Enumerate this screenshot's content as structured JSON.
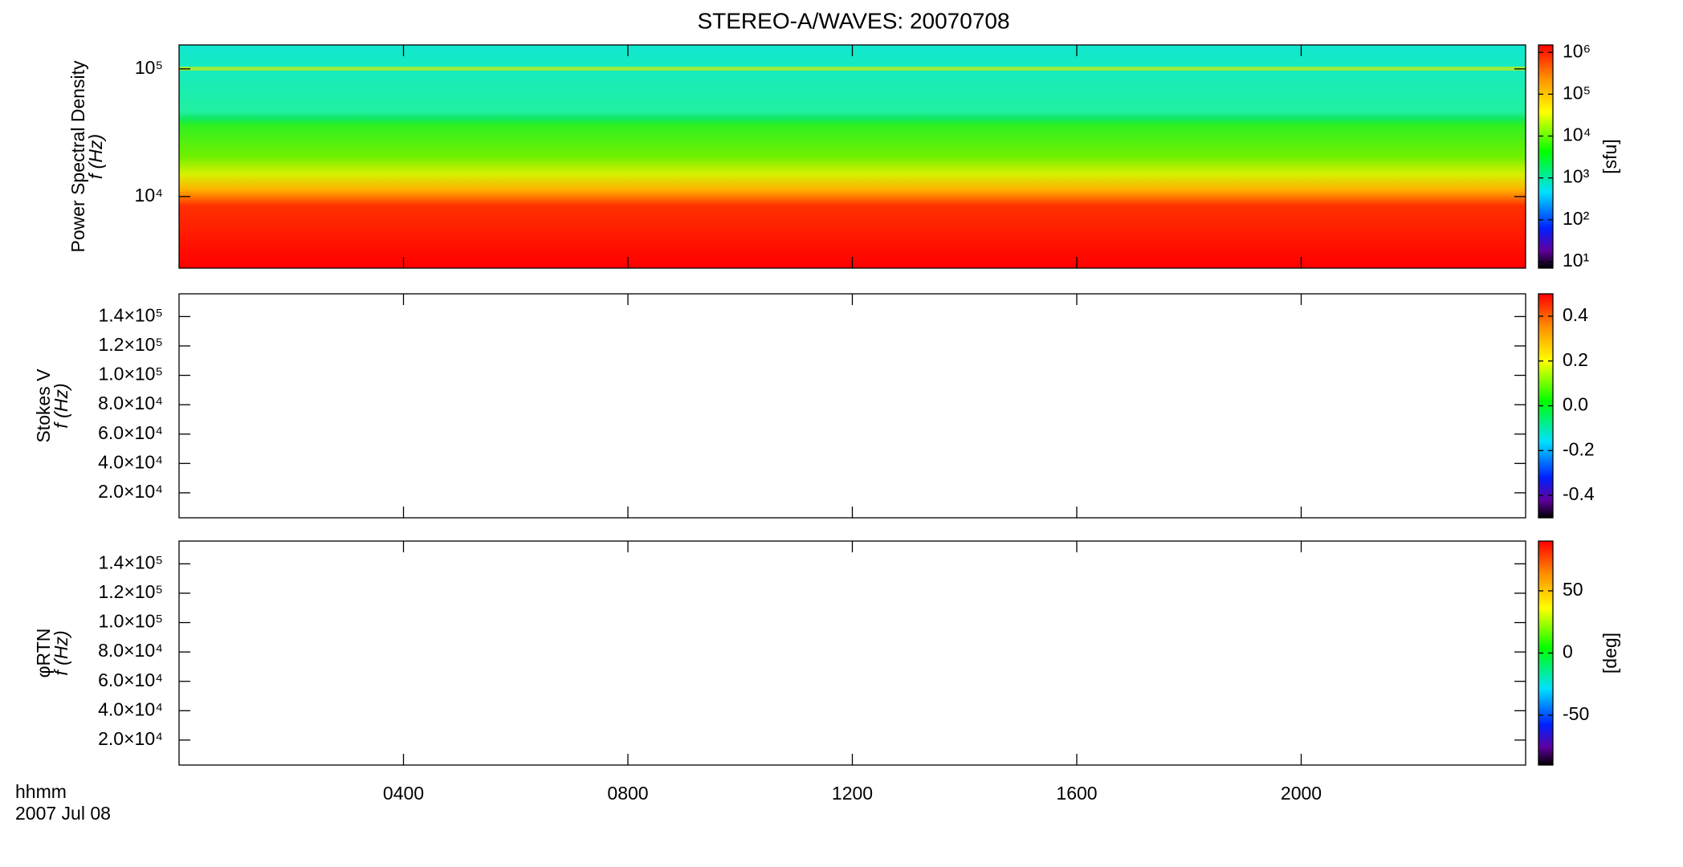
{
  "chart_data": [
    {
      "type": "heatmap",
      "title": "STEREO-A/WAVES: 20070708",
      "ylabel": [
        "Power Spectral Density",
        "f (Hz)"
      ],
      "ylog": true,
      "ylim": [
        2750,
        154000
      ],
      "yticks": [
        {
          "value": 10000,
          "label": "10⁴"
        },
        {
          "value": 100000,
          "label": "10⁵"
        }
      ],
      "colorbar": {
        "label": "[sfu]",
        "zlog": true,
        "zlim": [
          7,
          1500000
        ],
        "zticks": [
          {
            "value": 10,
            "label": "10¹"
          },
          {
            "value": 100,
            "label": "10²"
          },
          {
            "value": 1000,
            "label": "10³"
          },
          {
            "value": 10000,
            "label": "10⁴"
          },
          {
            "value": 100000,
            "label": "10⁵"
          },
          {
            "value": 1000000,
            "label": "10⁶"
          }
        ]
      }
    },
    {
      "type": "heatmap",
      "ylabel": [
        "Stokes V",
        "f (Hz)"
      ],
      "ylog": false,
      "ylim": [
        3000,
        155500
      ],
      "yticks": [
        {
          "value": 20000,
          "label": "2.0×10⁴"
        },
        {
          "value": 40000,
          "label": "4.0×10⁴"
        },
        {
          "value": 60000,
          "label": "6.0×10⁴"
        },
        {
          "value": 80000,
          "label": "8.0×10⁴"
        },
        {
          "value": 100000,
          "label": "1.0×10⁵"
        },
        {
          "value": 120000,
          "label": "1.2×10⁵"
        },
        {
          "value": 140000,
          "label": "1.4×10⁵"
        }
      ],
      "colorbar": {
        "zlog": false,
        "zlim": [
          -0.5,
          0.5
        ],
        "zticks": [
          -0.4,
          -0.2,
          {
            "value": 0,
            "label": "0.0"
          },
          0.2,
          0.4
        ]
      }
    },
    {
      "type": "heatmap",
      "ylabel": [
        "φRTN",
        "f (Hz)"
      ],
      "ylog": false,
      "ylim": [
        3000,
        155500
      ],
      "yticks": [
        {
          "value": 20000,
          "label": "2.0×10⁴"
        },
        {
          "value": 40000,
          "label": "4.0×10⁴"
        },
        {
          "value": 60000,
          "label": "6.0×10⁴"
        },
        {
          "value": 80000,
          "label": "8.0×10⁴"
        },
        {
          "value": 100000,
          "label": "1.0×10⁵"
        },
        {
          "value": 120000,
          "label": "1.2×10⁵"
        },
        {
          "value": 140000,
          "label": "1.4×10⁵"
        }
      ],
      "colorbar": {
        "label": "[deg]",
        "zlog": false,
        "zlim": [
          -90,
          90
        ],
        "zticks": [
          -50,
          0,
          50
        ]
      },
      "xlabel": "hhmm",
      "date": "2007 Jul 08",
      "xlim": [
        0,
        24
      ],
      "xticks": [
        {
          "value": 4,
          "label": "0400"
        },
        {
          "value": 8,
          "label": "0800"
        },
        {
          "value": 12,
          "label": "1200"
        },
        {
          "value": 16,
          "label": "1600"
        },
        {
          "value": 20,
          "label": "2000"
        }
      ]
    }
  ]
}
